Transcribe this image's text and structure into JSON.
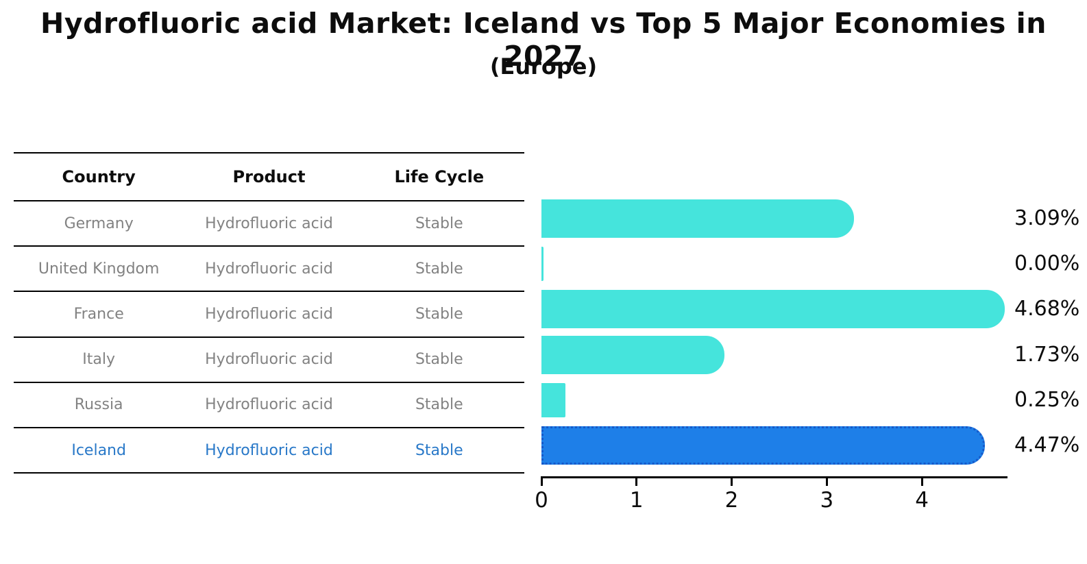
{
  "title": "Hydrofluoric acid Market: Iceland vs Top 5 Major Economies in 2027",
  "subtitle": "(Europe)",
  "table": {
    "headers": [
      "Country",
      "Product",
      "Life Cycle"
    ],
    "rows": [
      {
        "country": "Germany",
        "product": "Hydrofluoric acid",
        "life_cycle": "Stable",
        "highlighted": false
      },
      {
        "country": "United Kingdom",
        "product": "Hydrofluoric acid",
        "life_cycle": "Stable",
        "highlighted": false
      },
      {
        "country": "France",
        "product": "Hydrofluoric acid",
        "life_cycle": "Stable",
        "highlighted": false
      },
      {
        "country": "Italy",
        "product": "Hydrofluoric acid",
        "life_cycle": "Stable",
        "highlighted": false
      },
      {
        "country": "Russia",
        "product": "Hydrofluoric acid",
        "life_cycle": "Stable",
        "highlighted": true
      }
    ]
  },
  "chart_data": {
    "type": "bar",
    "orientation": "horizontal",
    "title": "Hydrofluoric acid Market: Iceland vs Top 5 Major Economies in 2027 (Europe)",
    "categories": [
      "Germany",
      "United Kingdom",
      "France",
      "Italy",
      "Russia",
      "Iceland"
    ],
    "values": [
      3.09,
      0.0,
      4.68,
      1.73,
      0.25,
      4.47
    ],
    "value_labels": [
      "3.09%",
      "0.00%",
      "4.68%",
      "1.73%",
      "0.25%",
      "4.47%"
    ],
    "highlight_index": 5,
    "xticks": [
      0,
      1,
      2,
      3,
      4
    ],
    "xlim": [
      0,
      4.9
    ],
    "grid": false,
    "legend_position": "none",
    "bar_color": "#45E4DC",
    "highlight_bar_color": "#1E7FE8",
    "highlight_border_color": "#1659C9",
    "highlight_text_color": "#2878C8",
    "body_text_color": "#828282",
    "axis_color": "#000000"
  }
}
